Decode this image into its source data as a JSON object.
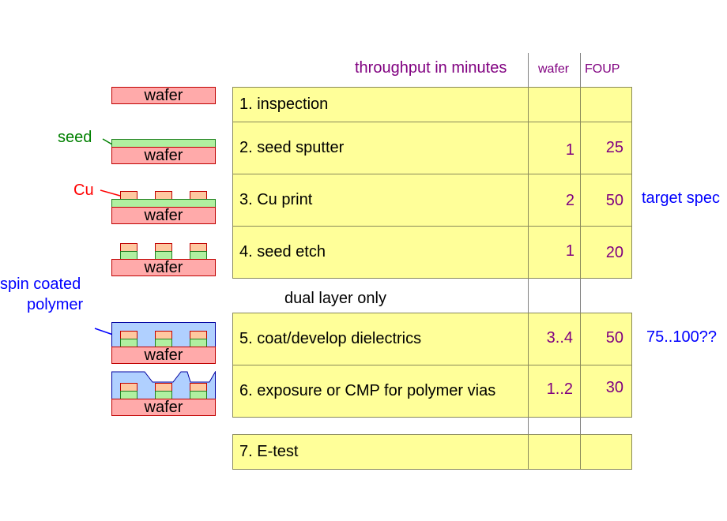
{
  "header": {
    "throughput": "throughput in minutes",
    "wafer_col": "wafer",
    "foup_col": "FOUP"
  },
  "steps": [
    {
      "label": "1. inspection",
      "wafer": "",
      "foup": ""
    },
    {
      "label": "2. seed sputter",
      "wafer": "1",
      "foup": "25"
    },
    {
      "label": "3. Cu print",
      "wafer": "2",
      "foup": "50"
    },
    {
      "label": "4. seed etch",
      "wafer": "1",
      "foup": "20"
    },
    {
      "label": "5. coat/develop dielectrics",
      "wafer": "3..4",
      "foup": "50"
    },
    {
      "label": "6. exposure or CMP for polymer vias",
      "wafer": "1..2",
      "foup": "30"
    },
    {
      "label": "7. E-test",
      "wafer": "",
      "foup": ""
    }
  ],
  "dual_layer": "dual layer only",
  "annotations": {
    "target_spec": "target spec",
    "target_range": "75..100??"
  },
  "diagram": {
    "wafer_label": "wafer",
    "seed_label": "seed",
    "cu_label": "Cu",
    "polymer_label_line1": "spin coated",
    "polymer_label_line2": "polymer"
  },
  "colors": {
    "row_fill": "#ffff99",
    "header_text": "#800080",
    "annotation_blue": "#0000ff",
    "seed_green": "#008000",
    "cu_red": "#ff0000",
    "wafer_fill": "#ffaaaa",
    "polymer_fill": "#b0d0ff"
  }
}
